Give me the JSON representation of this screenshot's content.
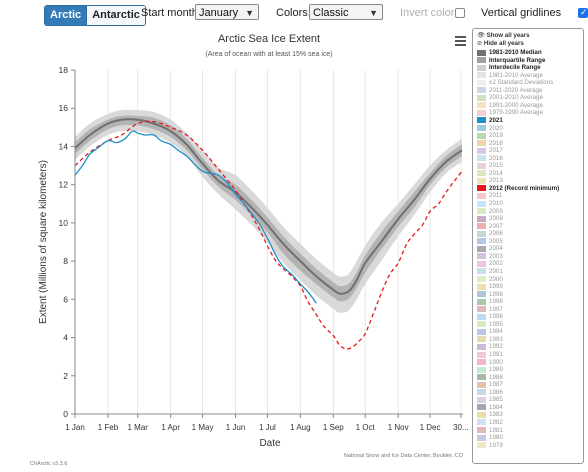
{
  "controls": {
    "hemisphere": {
      "arctic_label": "Arctic",
      "antarctic_label": "Antarctic"
    },
    "start_month": {
      "label": "Start month:",
      "value": "January"
    },
    "colors": {
      "label": "Colors:",
      "value": "Classic"
    },
    "invert_colors": {
      "label": "Invert colors",
      "checked": false
    },
    "vertical_gridlines": {
      "label": "Vertical gridlines",
      "checked": true
    }
  },
  "legend": {
    "show_all": "Show all years",
    "hide_all": "Hide all years",
    "entries": [
      {
        "label": "1981-2010 Median",
        "color": "#707070",
        "bold": true
      },
      {
        "label": "Interquartile Range",
        "color": "#a0a0a0",
        "bold": true
      },
      {
        "label": "Interdecile Range",
        "color": "#cfcfcf",
        "bold": true
      },
      {
        "label": "1981-2010 Average",
        "color": "#e3e3e3",
        "bold": false
      },
      {
        "label": "±2 Standard Deviations",
        "color": "#efefef",
        "bold": false
      },
      {
        "label": "2011-2020 Average",
        "color": "#c6d8ea",
        "bold": false
      },
      {
        "label": "2001-2010 Average",
        "color": "#cde0c6",
        "bold": false
      },
      {
        "label": "1991-2000 Average",
        "color": "#f3e3c0",
        "bold": false
      },
      {
        "label": "1979-1990 Average",
        "color": "#f0d0d0",
        "bold": false
      },
      {
        "label": "2021",
        "color": "#1f8fc9",
        "bold": true
      },
      {
        "label": "2020",
        "color": "#9ec8e6",
        "bold": false
      },
      {
        "label": "2019",
        "color": "#b7d9b0",
        "bold": false
      },
      {
        "label": "2018",
        "color": "#f2d3b1",
        "bold": false
      },
      {
        "label": "2017",
        "color": "#d8c8e6",
        "bold": false
      },
      {
        "label": "2016",
        "color": "#c5e6ee",
        "bold": false
      },
      {
        "label": "2015",
        "color": "#e6d0dc",
        "bold": false
      },
      {
        "label": "2014",
        "color": "#d9e8c4",
        "bold": false
      },
      {
        "label": "2013",
        "color": "#f0e3b5",
        "bold": false
      },
      {
        "label": "2012 (Record minimum)",
        "color": "#e31a1c",
        "bold": true
      },
      {
        "label": "2011",
        "color": "#f5c7c7",
        "bold": false
      },
      {
        "label": "2010",
        "color": "#c7e3f5",
        "bold": false
      },
      {
        "label": "2009",
        "color": "#d5ecc7",
        "bold": false
      },
      {
        "label": "2008",
        "color": "#c9a8c9",
        "bold": false
      },
      {
        "label": "2007",
        "color": "#e8b0b0",
        "bold": false
      },
      {
        "label": "2006",
        "color": "#c2d6d6",
        "bold": false
      },
      {
        "label": "2005",
        "color": "#b5c6e6",
        "bold": false
      },
      {
        "label": "2004",
        "color": "#a9a9a9",
        "bold": false
      },
      {
        "label": "2003",
        "color": "#d6c2e0",
        "bold": false
      },
      {
        "label": "2002",
        "color": "#ecc6e0",
        "bold": false
      },
      {
        "label": "2001",
        "color": "#c6e0ec",
        "bold": false
      },
      {
        "label": "2000",
        "color": "#e0ecc6",
        "bold": false
      },
      {
        "label": "1999",
        "color": "#f0e0b0",
        "bold": false
      },
      {
        "label": "1998",
        "color": "#b0c8d8",
        "bold": false
      },
      {
        "label": "1996",
        "color": "#a8c8a8",
        "bold": false
      },
      {
        "label": "1997",
        "color": "#e0b8c0",
        "bold": false
      },
      {
        "label": "1996",
        "color": "#c0d8f0",
        "bold": false
      },
      {
        "label": "1995",
        "color": "#d8e8c0",
        "bold": false
      },
      {
        "label": "1994",
        "color": "#b8c8e0",
        "bold": false
      },
      {
        "label": "1993",
        "color": "#e8d8b0",
        "bold": false
      },
      {
        "label": "1992",
        "color": "#d0b8d8",
        "bold": false
      },
      {
        "label": "1991",
        "color": "#f0c8d8",
        "bold": false
      },
      {
        "label": "1990",
        "color": "#f0b8c8",
        "bold": false
      },
      {
        "label": "1989",
        "color": "#c8e8d0",
        "bold": false
      },
      {
        "label": "1988",
        "color": "#a8b8a8",
        "bold": false
      },
      {
        "label": "1987",
        "color": "#e8c0b0",
        "bold": false
      },
      {
        "label": "1986",
        "color": "#c8d8e8",
        "bold": false
      },
      {
        "label": "1985",
        "color": "#d8d0e8",
        "bold": false
      },
      {
        "label": "1984",
        "color": "#a0a8b8",
        "bold": false
      },
      {
        "label": "1983",
        "color": "#e8e0a8",
        "bold": false
      },
      {
        "label": "1982",
        "color": "#d0e0f0",
        "bold": false
      },
      {
        "label": "1981",
        "color": "#e0b8b8",
        "bold": false
      },
      {
        "label": "1980",
        "color": "#c8c8e8",
        "bold": false
      },
      {
        "label": "1979",
        "color": "#f0e8c8",
        "bold": false
      }
    ]
  },
  "footer": {
    "version": "ChArctic v3.3.6",
    "credit": "National Snow and Ice Data Center, Boulder, CO"
  },
  "chart_data": {
    "type": "line",
    "title": "Arctic Sea Ice Extent",
    "subtitle": "(Area of ocean with at least 15% sea ice)",
    "xlabel": "Date",
    "ylabel": "Extent (Millions of square kilometers)",
    "ylim": [
      0,
      18
    ],
    "yticks": [
      0,
      2,
      4,
      6,
      8,
      10,
      12,
      14,
      16,
      18
    ],
    "xlim_days": [
      1,
      366
    ],
    "xticks": [
      {
        "label": "1 Jan",
        "day": 1
      },
      {
        "label": "1 Feb",
        "day": 32
      },
      {
        "label": "1 Mar",
        "day": 60
      },
      {
        "label": "1 Apr",
        "day": 91
      },
      {
        "label": "1 May",
        "day": 121
      },
      {
        "label": "1 Jun",
        "day": 152
      },
      {
        "label": "1 Jul",
        "day": 182
      },
      {
        "label": "1 Aug",
        "day": 213
      },
      {
        "label": "1 Sep",
        "day": 244
      },
      {
        "label": "1 Oct",
        "day": 274
      },
      {
        "label": "1 Nov",
        "day": 305
      },
      {
        "label": "1 Dec",
        "day": 335
      },
      {
        "label": "30...",
        "day": 364
      }
    ],
    "grid": {
      "horizontal": false,
      "vertical": true
    },
    "median_1981_2010": {
      "x": [
        1,
        15,
        32,
        45,
        60,
        75,
        91,
        106,
        121,
        136,
        152,
        167,
        182,
        197,
        213,
        228,
        244,
        250,
        258,
        265,
        274,
        289,
        305,
        320,
        335,
        350,
        365
      ],
      "y": [
        13.9,
        14.6,
        15.2,
        15.4,
        15.4,
        15.2,
        14.8,
        14.1,
        13.1,
        12.2,
        11.6,
        10.8,
        9.9,
        8.9,
        8.0,
        7.2,
        6.5,
        6.3,
        6.4,
        6.9,
        7.9,
        9.0,
        10.2,
        11.2,
        12.3,
        13.2,
        13.8
      ]
    },
    "interquartile_range": {
      "x": [
        1,
        15,
        32,
        45,
        60,
        75,
        91,
        106,
        121,
        136,
        152,
        167,
        182,
        197,
        213,
        228,
        244,
        250,
        258,
        265,
        274,
        289,
        305,
        320,
        335,
        350,
        365
      ],
      "lower": [
        13.6,
        14.3,
        14.9,
        15.1,
        15.1,
        14.9,
        14.5,
        13.8,
        12.8,
        11.9,
        11.2,
        10.4,
        9.5,
        8.4,
        7.5,
        6.8,
        6.1,
        5.9,
        6.0,
        6.5,
        7.4,
        8.6,
        9.8,
        10.8,
        12.0,
        12.9,
        13.5
      ],
      "upper": [
        14.2,
        14.9,
        15.4,
        15.6,
        15.6,
        15.5,
        15.1,
        14.4,
        13.4,
        12.5,
        12.0,
        11.2,
        10.3,
        9.3,
        8.4,
        7.6,
        6.9,
        6.7,
        6.8,
        7.3,
        8.3,
        9.5,
        10.6,
        11.6,
        12.6,
        13.5,
        14.1
      ]
    },
    "interdecile_range": {
      "x": [
        1,
        15,
        32,
        45,
        60,
        75,
        91,
        106,
        121,
        136,
        152,
        167,
        182,
        197,
        213,
        228,
        244,
        250,
        258,
        265,
        274,
        289,
        305,
        320,
        335,
        350,
        365
      ],
      "lower": [
        13.3,
        14.0,
        14.6,
        14.8,
        14.8,
        14.6,
        14.2,
        13.5,
        12.4,
        11.5,
        10.7,
        9.9,
        9.0,
        7.9,
        7.0,
        6.2,
        5.5,
        5.3,
        5.4,
        5.9,
        6.8,
        8.0,
        9.3,
        10.4,
        11.6,
        12.6,
        13.2
      ],
      "upper": [
        14.5,
        15.2,
        15.7,
        15.9,
        15.9,
        15.8,
        15.4,
        14.7,
        13.8,
        12.9,
        12.5,
        11.7,
        10.8,
        9.8,
        8.9,
        8.1,
        7.4,
        7.2,
        7.3,
        7.9,
        8.8,
        10.0,
        11.0,
        12.0,
        13.0,
        13.8,
        14.4
      ]
    },
    "series": [
      {
        "name": "2021",
        "color": "#1f8fc9",
        "x": [
          1,
          8,
          15,
          22,
          32,
          40,
          48,
          55,
          60,
          67,
          75,
          82,
          91,
          98,
          106,
          113,
          121,
          128,
          136,
          144,
          152,
          160,
          167,
          175,
          182,
          190,
          197,
          205,
          213,
          220,
          228
        ],
        "y": [
          12.5,
          13.0,
          13.6,
          13.9,
          14.3,
          14.2,
          14.4,
          14.8,
          14.7,
          14.6,
          14.6,
          14.3,
          14.1,
          13.8,
          13.5,
          13.1,
          12.7,
          12.6,
          12.5,
          12.1,
          11.5,
          11.0,
          10.5,
          9.9,
          9.2,
          8.3,
          7.7,
          7.3,
          6.8,
          6.4,
          5.8
        ]
      },
      {
        "name": "2012 (Record minimum)",
        "color": "#e31a1c",
        "dashed": true,
        "x": [
          1,
          15,
          32,
          45,
          60,
          75,
          91,
          106,
          121,
          136,
          152,
          160,
          167,
          175,
          182,
          190,
          197,
          205,
          213,
          220,
          228,
          235,
          244,
          250,
          256,
          262,
          268,
          274,
          282,
          289,
          297,
          305,
          313,
          320,
          328,
          335,
          343,
          350,
          358,
          365
        ],
        "y": [
          13.0,
          13.7,
          14.3,
          14.6,
          15.2,
          15.3,
          15.0,
          14.6,
          13.8,
          12.8,
          11.7,
          11.0,
          10.4,
          9.6,
          8.8,
          8.0,
          7.6,
          7.2,
          6.7,
          5.9,
          5.2,
          4.6,
          4.1,
          3.6,
          3.4,
          3.5,
          3.8,
          4.2,
          5.3,
          6.3,
          7.3,
          7.9,
          8.9,
          9.4,
          9.9,
          10.6,
          11.0,
          11.6,
          12.2,
          12.7
        ]
      }
    ]
  }
}
